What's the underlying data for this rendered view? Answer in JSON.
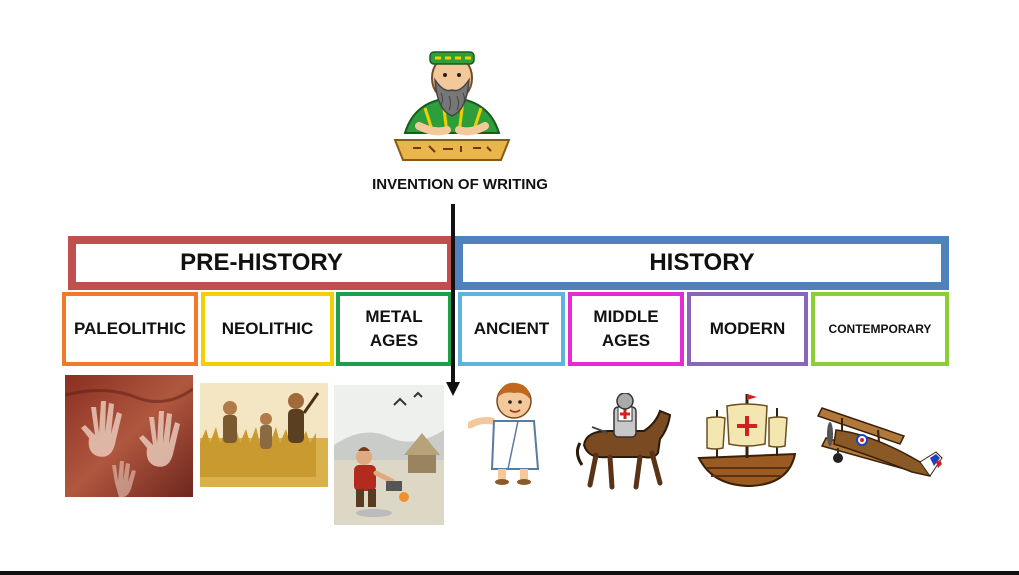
{
  "caption": "INVENTION OF WRITING",
  "eras": {
    "prehistory": {
      "label": "PRE-HISTORY",
      "color": "#c0504d"
    },
    "history": {
      "label": "HISTORY",
      "color": "#4f81bd"
    }
  },
  "periods": [
    {
      "label": "PALEOLITHIC",
      "color": "#f07a2a"
    },
    {
      "label": "NEOLITHIC",
      "color": "#f5d000"
    },
    {
      "label": "METAL\nAGES",
      "color": "#1f9e4e"
    },
    {
      "label": "ANCIENT",
      "color": "#5fb3dd"
    },
    {
      "label": "MIDDLE\nAGES",
      "color": "#e52bd6"
    },
    {
      "label": "MODERN",
      "color": "#8a66b6"
    },
    {
      "label": "CONTEMPORARY",
      "color": "#8ccd3a"
    }
  ],
  "icons": {
    "scribe": "scribe-writing-icon",
    "paleolithic": "cave-hand-painting-icon",
    "neolithic": "neolithic-people-icon",
    "metal_ages": "metalworker-icon",
    "ancient": "roman-boy-icon",
    "middle_ages": "knight-on-horse-icon",
    "modern": "caravel-ship-icon",
    "contemporary": "biplane-icon"
  }
}
